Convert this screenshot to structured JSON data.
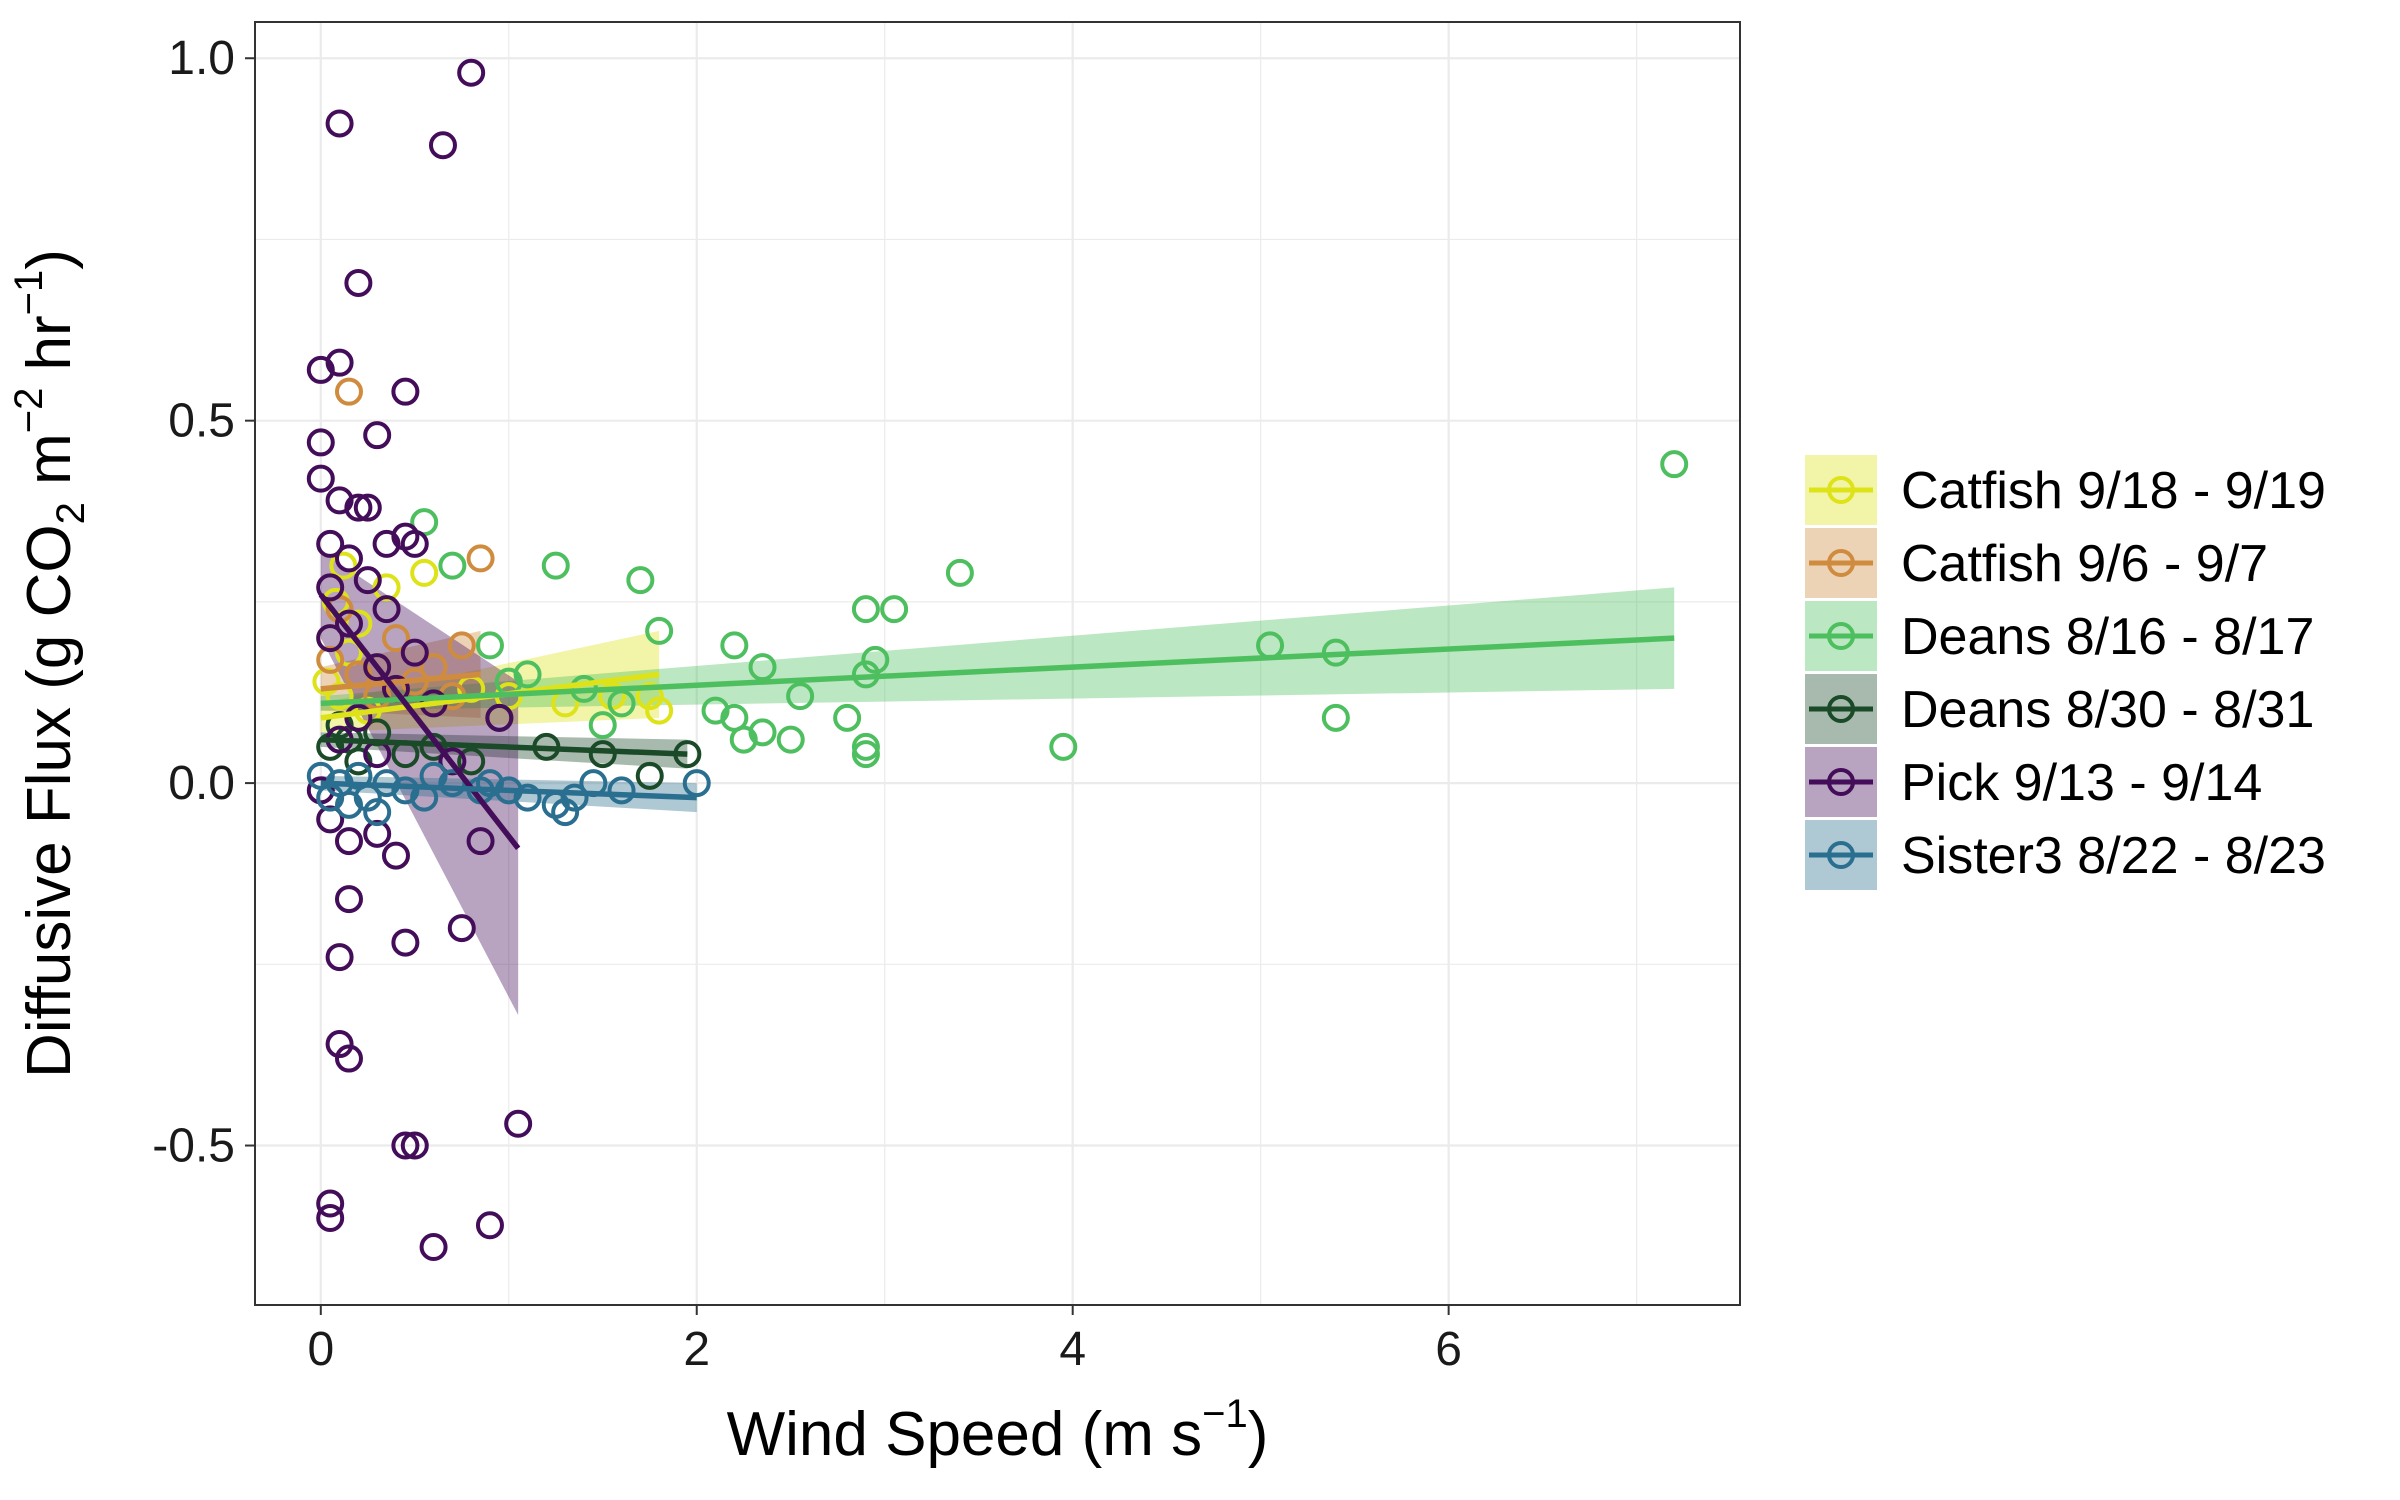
{
  "chart_data": {
    "type": "scatter",
    "xlabel": "Wind Speed (m s⁻¹)",
    "ylabel": "Diffusive Flux (g CO₂ m⁻² hr⁻¹)",
    "xlabel_parts": {
      "main": "Wind Speed (m s",
      "sup": "−1",
      "close": ")"
    },
    "ylabel_parts": {
      "pre": "Diffusive Flux (g CO",
      "sub": "2",
      "mid1": " m",
      "sup1": "−2",
      "mid2": " hr",
      "sup2": "−1",
      "close": ")"
    },
    "xlim": [
      -0.35,
      7.55
    ],
    "ylim": [
      -0.72,
      1.05
    ],
    "x_ticks": [
      0,
      2,
      4,
      6
    ],
    "x_tick_labels": [
      "0",
      "2",
      "4",
      "6"
    ],
    "y_ticks": [
      -0.5,
      0.0,
      0.5,
      1.0
    ],
    "y_tick_labels": [
      "-0.5",
      "0.0",
      "0.5",
      "1.0"
    ],
    "grid": true,
    "legend_position": "right",
    "series": [
      {
        "name": "Catfish 9/18 - 9/19",
        "color": "#dde318",
        "points": [
          [
            0.03,
            0.14
          ],
          [
            0.05,
            0.2
          ],
          [
            0.08,
            0.25
          ],
          [
            0.1,
            0.12
          ],
          [
            0.15,
            0.18
          ],
          [
            0.2,
            0.22
          ],
          [
            0.25,
            0.1
          ],
          [
            0.3,
            0.16
          ],
          [
            0.4,
            0.13
          ],
          [
            0.55,
            0.29
          ],
          [
            0.8,
            0.13
          ],
          [
            1.0,
            0.12
          ],
          [
            1.3,
            0.11
          ],
          [
            1.55,
            0.12
          ],
          [
            1.75,
            0.12
          ],
          [
            1.8,
            0.1
          ],
          [
            0.35,
            0.27
          ],
          [
            0.12,
            0.3
          ]
        ],
        "fit": {
          "x": [
            0.0,
            1.8
          ],
          "y": [
            0.09,
            0.15
          ],
          "ci_lo": [
            0.07,
            0.09
          ],
          "ci_hi": [
            0.11,
            0.21
          ]
        }
      },
      {
        "name": "Catfish 9/6 - 9/7",
        "color": "#d08c3e",
        "points": [
          [
            0.15,
            0.54
          ],
          [
            0.85,
            0.31
          ],
          [
            0.75,
            0.19
          ],
          [
            0.6,
            0.16
          ],
          [
            0.4,
            0.2
          ],
          [
            0.3,
            0.12
          ],
          [
            0.2,
            0.15
          ],
          [
            0.1,
            0.24
          ],
          [
            0.05,
            0.17
          ],
          [
            0.5,
            0.14
          ],
          [
            0.7,
            0.12
          ]
        ],
        "fit": {
          "x": [
            0.0,
            0.85
          ],
          "y": [
            0.13,
            0.15
          ],
          "ci_lo": [
            0.1,
            0.09
          ],
          "ci_hi": [
            0.16,
            0.21
          ]
        }
      },
      {
        "name": "Deans 8/16 - 8/17",
        "color": "#4dbf5f",
        "points": [
          [
            7.2,
            0.44
          ],
          [
            3.4,
            0.29
          ],
          [
            1.25,
            0.3
          ],
          [
            0.55,
            0.36
          ],
          [
            0.7,
            0.3
          ],
          [
            1.7,
            0.28
          ],
          [
            2.9,
            0.24
          ],
          [
            3.05,
            0.24
          ],
          [
            1.8,
            0.21
          ],
          [
            2.2,
            0.19
          ],
          [
            2.35,
            0.16
          ],
          [
            2.95,
            0.17
          ],
          [
            2.9,
            0.15
          ],
          [
            5.05,
            0.19
          ],
          [
            5.4,
            0.18
          ],
          [
            0.9,
            0.19
          ],
          [
            1.1,
            0.15
          ],
          [
            1.4,
            0.13
          ],
          [
            1.6,
            0.11
          ],
          [
            2.1,
            0.1
          ],
          [
            2.2,
            0.09
          ],
          [
            2.55,
            0.12
          ],
          [
            2.8,
            0.09
          ],
          [
            2.25,
            0.06
          ],
          [
            2.5,
            0.06
          ],
          [
            2.9,
            0.05
          ],
          [
            2.9,
            0.04
          ],
          [
            3.95,
            0.05
          ],
          [
            5.4,
            0.09
          ],
          [
            2.35,
            0.07
          ],
          [
            1.5,
            0.08
          ],
          [
            1.0,
            0.14
          ]
        ],
        "fit": {
          "x": [
            0.0,
            7.2
          ],
          "y": [
            0.11,
            0.2
          ],
          "ci_lo": [
            0.1,
            0.13
          ],
          "ci_hi": [
            0.12,
            0.27
          ]
        }
      },
      {
        "name": "Deans 8/30 - 8/31",
        "color": "#1a4a27",
        "points": [
          [
            1.95,
            0.04
          ],
          [
            1.75,
            0.01
          ],
          [
            0.95,
            0.09
          ],
          [
            0.6,
            0.05
          ],
          [
            0.3,
            0.07
          ],
          [
            0.15,
            0.06
          ],
          [
            0.05,
            0.05
          ],
          [
            0.2,
            0.03
          ],
          [
            0.45,
            0.04
          ],
          [
            0.8,
            0.03
          ],
          [
            1.2,
            0.05
          ],
          [
            1.5,
            0.04
          ],
          [
            0.1,
            0.08
          ]
        ],
        "fit": {
          "x": [
            0.0,
            1.95
          ],
          "y": [
            0.06,
            0.04
          ],
          "ci_lo": [
            0.05,
            0.02
          ],
          "ci_hi": [
            0.07,
            0.06
          ]
        }
      },
      {
        "name": "Pick 9/13 - 9/14",
        "color": "#440d5a",
        "points": [
          [
            0.8,
            0.98
          ],
          [
            0.1,
            0.91
          ],
          [
            0.65,
            0.88
          ],
          [
            0.2,
            0.69
          ],
          [
            0.1,
            0.58
          ],
          [
            0.0,
            0.57
          ],
          [
            0.45,
            0.54
          ],
          [
            0.3,
            0.48
          ],
          [
            0.0,
            0.47
          ],
          [
            0.0,
            0.42
          ],
          [
            0.1,
            0.39
          ],
          [
            0.2,
            0.38
          ],
          [
            0.25,
            0.38
          ],
          [
            0.45,
            0.34
          ],
          [
            0.5,
            0.33
          ],
          [
            0.05,
            0.33
          ],
          [
            0.35,
            0.33
          ],
          [
            0.15,
            0.31
          ],
          [
            0.25,
            0.28
          ],
          [
            0.05,
            0.27
          ],
          [
            0.35,
            0.24
          ],
          [
            0.15,
            0.22
          ],
          [
            0.05,
            0.2
          ],
          [
            0.5,
            0.18
          ],
          [
            0.3,
            0.16
          ],
          [
            0.4,
            0.13
          ],
          [
            0.6,
            0.11
          ],
          [
            0.2,
            0.09
          ],
          [
            0.1,
            0.06
          ],
          [
            0.3,
            0.04
          ],
          [
            0.7,
            0.03
          ],
          [
            0.95,
            0.09
          ],
          [
            0.0,
            -0.01
          ],
          [
            0.05,
            -0.05
          ],
          [
            0.15,
            -0.08
          ],
          [
            0.3,
            -0.07
          ],
          [
            0.4,
            -0.1
          ],
          [
            0.85,
            -0.08
          ],
          [
            0.15,
            -0.16
          ],
          [
            0.75,
            -0.2
          ],
          [
            0.45,
            -0.22
          ],
          [
            0.1,
            -0.24
          ],
          [
            0.1,
            -0.36
          ],
          [
            0.15,
            -0.38
          ],
          [
            1.05,
            -0.47
          ],
          [
            0.45,
            -0.5
          ],
          [
            0.5,
            -0.5
          ],
          [
            0.05,
            -0.58
          ],
          [
            0.05,
            -0.6
          ],
          [
            0.9,
            -0.61
          ],
          [
            0.6,
            -0.64
          ]
        ],
        "fit": {
          "x": [
            0.0,
            1.05
          ],
          "y": [
            0.26,
            -0.09
          ],
          "ci_lo": [
            0.2,
            -0.32
          ],
          "ci_hi": [
            0.32,
            0.14
          ]
        }
      },
      {
        "name": "Sister3 8/22 - 8/23",
        "color": "#2a6f8f",
        "points": [
          [
            0.0,
            0.01
          ],
          [
            0.05,
            -0.02
          ],
          [
            0.1,
            0.0
          ],
          [
            0.15,
            -0.03
          ],
          [
            0.2,
            0.01
          ],
          [
            0.25,
            -0.02
          ],
          [
            0.35,
            0.0
          ],
          [
            0.45,
            -0.01
          ],
          [
            0.55,
            -0.02
          ],
          [
            0.7,
            0.0
          ],
          [
            0.85,
            -0.01
          ],
          [
            1.0,
            -0.01
          ],
          [
            1.1,
            -0.02
          ],
          [
            1.25,
            -0.03
          ],
          [
            1.35,
            -0.02
          ],
          [
            1.45,
            0.0
          ],
          [
            1.6,
            -0.01
          ],
          [
            2.0,
            0.0
          ],
          [
            0.6,
            0.01
          ],
          [
            0.3,
            -0.04
          ],
          [
            1.3,
            -0.04
          ],
          [
            0.9,
            0.0
          ]
        ],
        "fit": {
          "x": [
            0.0,
            2.0
          ],
          "y": [
            0.0,
            -0.02
          ],
          "ci_lo": [
            -0.01,
            -0.04
          ],
          "ci_hi": [
            0.01,
            0.0
          ]
        }
      }
    ]
  }
}
